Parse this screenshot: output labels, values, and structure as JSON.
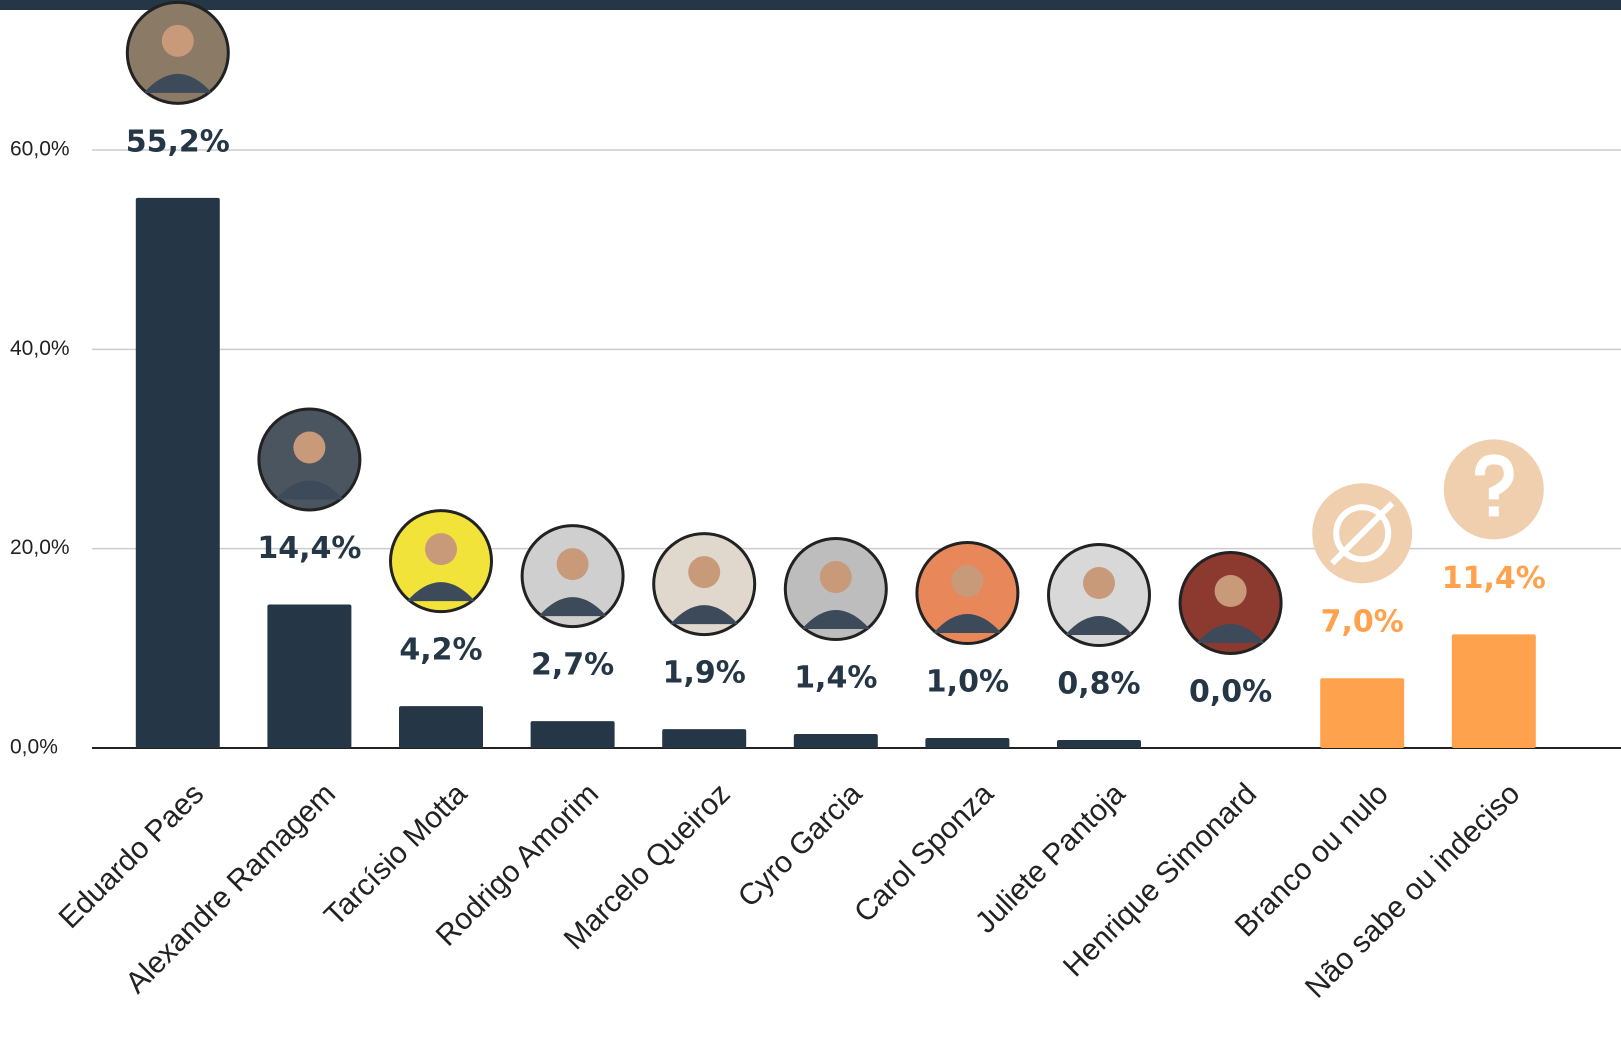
{
  "chart_data": {
    "type": "bar",
    "categories": [
      "Eduardo Paes",
      "Alexandre Ramagem",
      "Tarcísio Motta",
      "Rodrigo Amorim",
      "Marcelo Queiroz",
      "Cyro Garcia",
      "Carol Sponza",
      "Juliete Pantoja",
      "Henrique Simonard",
      "Branco ou nulo",
      "Não sabe ou indeciso"
    ],
    "values": [
      55.2,
      14.4,
      4.2,
      2.7,
      1.9,
      1.4,
      1.0,
      0.8,
      0.0,
      7.0,
      11.4
    ],
    "value_labels": [
      "55,2%",
      "14,4%",
      "4,2%",
      "2,7%",
      "1,9%",
      "1,4%",
      "1,0%",
      "0,8%",
      "0,0%",
      "7,0%",
      "11,4%"
    ],
    "colors": [
      "#253746",
      "#253746",
      "#253746",
      "#253746",
      "#253746",
      "#253746",
      "#253746",
      "#253746",
      "#253746",
      "#ffa24d",
      "#ffa24d"
    ],
    "ylim": [
      0,
      60
    ],
    "yticks": [
      {
        "value": 0,
        "label": "0,0%"
      },
      {
        "value": 20,
        "label": "20,0%"
      },
      {
        "value": 40,
        "label": "40,0%"
      },
      {
        "value": 60,
        "label": "60,0%"
      }
    ],
    "grid": true
  }
}
